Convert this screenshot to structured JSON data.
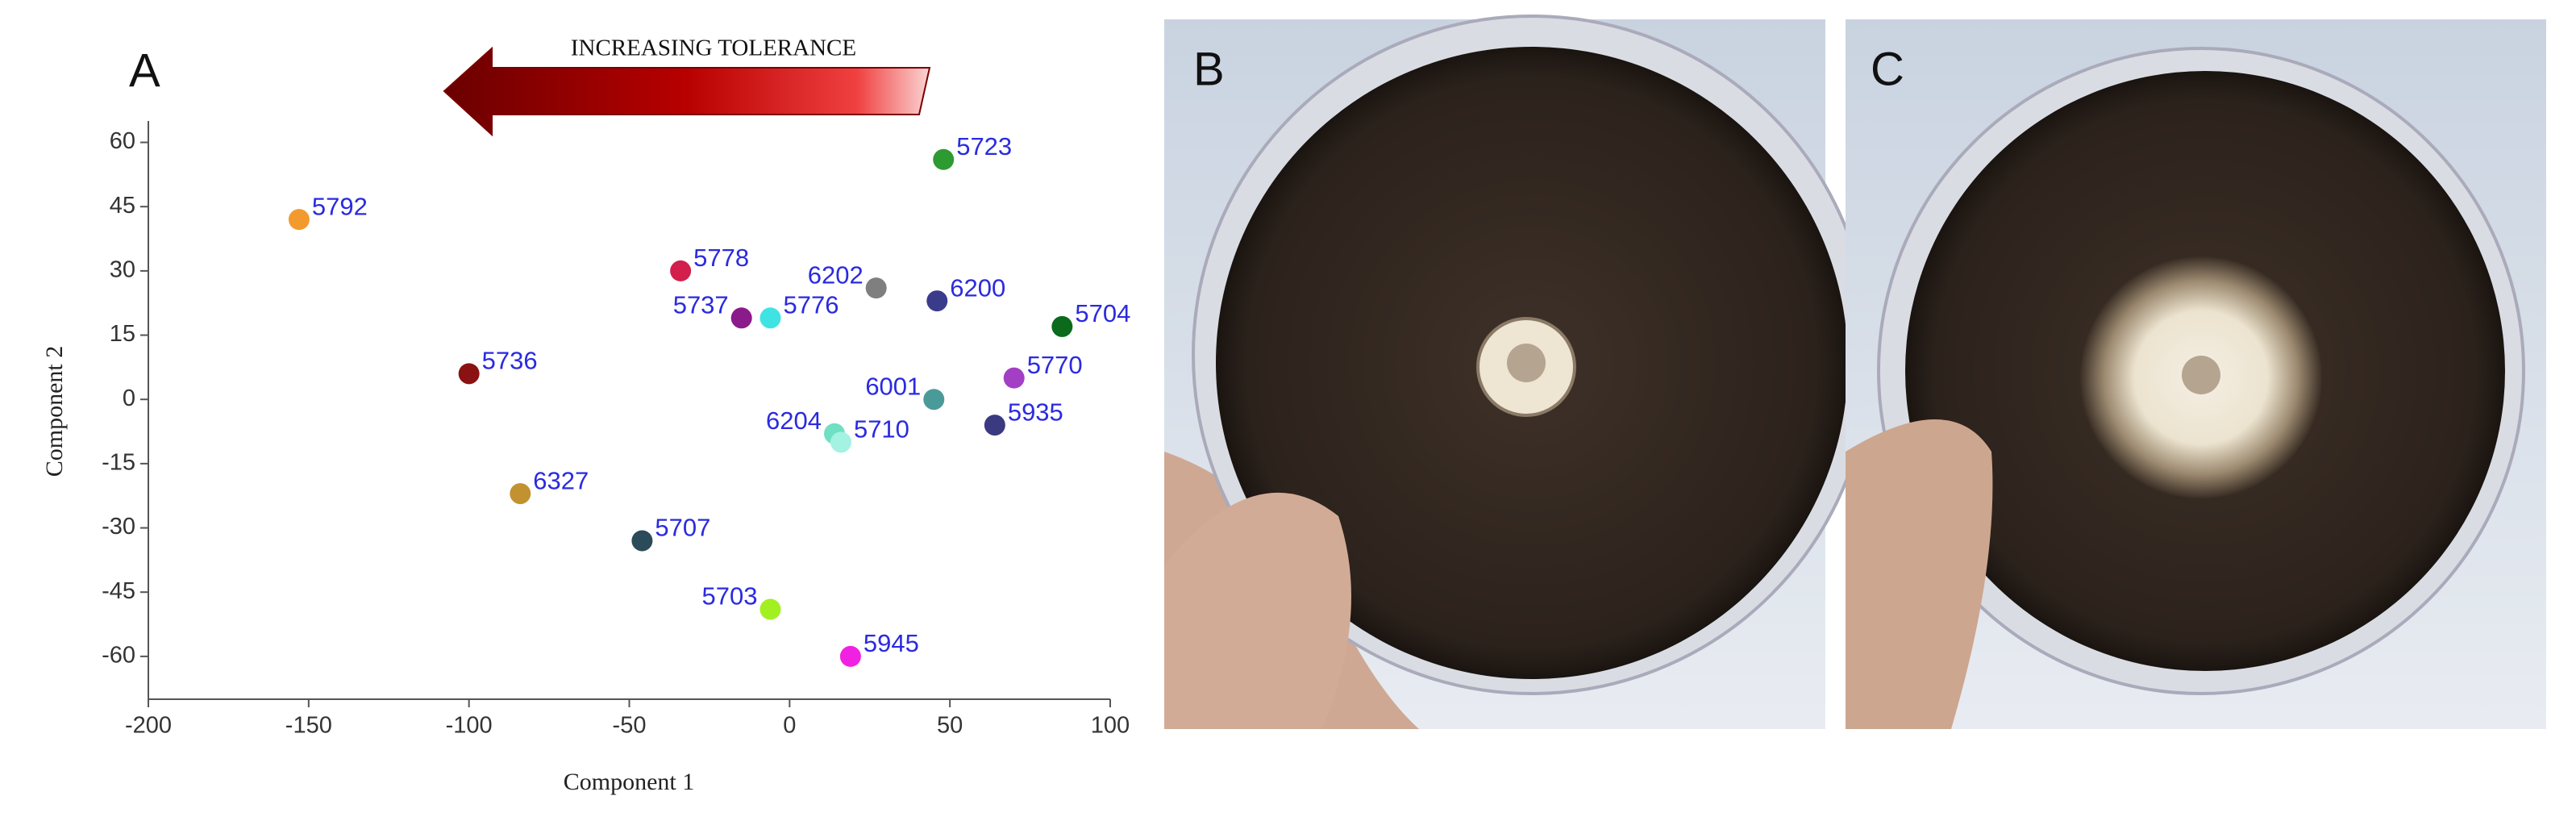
{
  "chart_data": {
    "type": "scatter",
    "panel_labels": [
      "A",
      "B",
      "C"
    ],
    "arrow_label": "INCREASING TOLERANCE",
    "xlabel": "Component 1",
    "ylabel": "Component 2",
    "xlim": [
      -200,
      100
    ],
    "xticks": [
      -200,
      -150,
      -100,
      -50,
      0,
      50,
      100
    ],
    "ylim": [
      -70,
      65
    ],
    "yticks": [
      -60,
      -45,
      -30,
      -15,
      0,
      15,
      30,
      45,
      60
    ],
    "series": [
      {
        "name": "5792",
        "color": "#f29a2e",
        "x": [
          -153
        ],
        "values": [
          42
        ]
      },
      {
        "name": "5723",
        "color": "#2e9a32",
        "x": [
          48
        ],
        "values": [
          56
        ]
      },
      {
        "name": "5778",
        "color": "#d21f4b",
        "x": [
          -34
        ],
        "values": [
          30
        ]
      },
      {
        "name": "6202",
        "color": "#7f7f7f",
        "x": [
          27
        ],
        "values": [
          26
        ]
      },
      {
        "name": "6200",
        "color": "#3b3b8c",
        "x": [
          46
        ],
        "values": [
          23
        ]
      },
      {
        "name": "5737",
        "color": "#8b1a8b",
        "x": [
          -15
        ],
        "values": [
          19
        ]
      },
      {
        "name": "5776",
        "color": "#3fe3e3",
        "x": [
          -6
        ],
        "values": [
          19
        ]
      },
      {
        "name": "5704",
        "color": "#0b6a1c",
        "x": [
          85
        ],
        "values": [
          17
        ]
      },
      {
        "name": "5736",
        "color": "#8b1212",
        "x": [
          -100
        ],
        "values": [
          6
        ]
      },
      {
        "name": "5770",
        "color": "#a33fc4",
        "x": [
          70
        ],
        "values": [
          5
        ]
      },
      {
        "name": "6001",
        "color": "#4b9a9a",
        "x": [
          45
        ],
        "values": [
          0
        ]
      },
      {
        "name": "5935",
        "color": "#3a3a80",
        "x": [
          64
        ],
        "values": [
          -6
        ]
      },
      {
        "name": "6204",
        "color": "#6fe0c2",
        "x": [
          14
        ],
        "values": [
          -8
        ]
      },
      {
        "name": "5710",
        "color": "#a3f2e2",
        "x": [
          16
        ],
        "values": [
          -10
        ]
      },
      {
        "name": "6327",
        "color": "#c29231",
        "x": [
          -84
        ],
        "values": [
          -22
        ]
      },
      {
        "name": "5707",
        "color": "#2b4a5a",
        "x": [
          -46
        ],
        "values": [
          -33
        ]
      },
      {
        "name": "5703",
        "color": "#a3f022",
        "x": [
          -6
        ],
        "values": [
          -49
        ]
      },
      {
        "name": "5945",
        "color": "#f021e0",
        "x": [
          19
        ],
        "values": [
          -60
        ]
      }
    ]
  }
}
